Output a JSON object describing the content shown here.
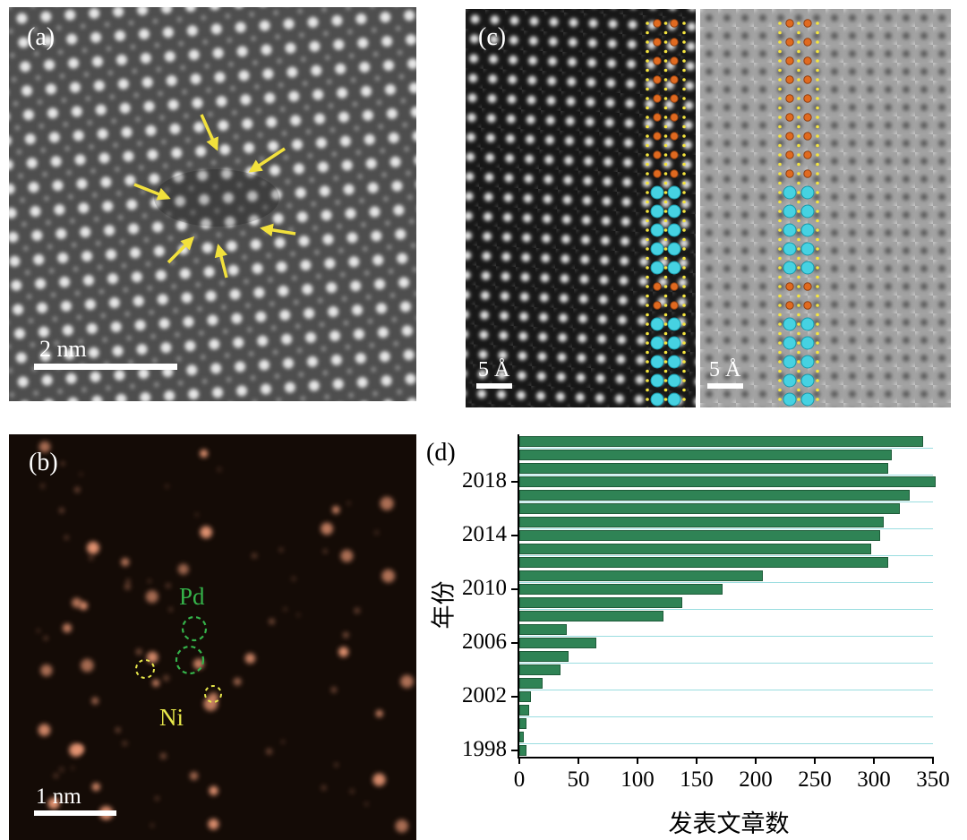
{
  "figure_labels": {
    "a": "(a)",
    "b": "(b)",
    "c": "(c)",
    "d": "(d)"
  },
  "panel_a": {
    "scale_bar_label": "2 nm",
    "annotation": "yellow arrows marking lattice defect sites"
  },
  "panel_b": {
    "pd_label": "Pd",
    "ni_label": "Ni",
    "scale_bar_label": "1 nm"
  },
  "panel_c": {
    "scale_bar_left": "5 Å",
    "scale_bar_right": "5 Å"
  },
  "colors": {
    "arrow_yellow": "#f2e13c",
    "pd_green": "#35b34a",
    "ni_yellow": "#e8e84a",
    "atom_dot_orange": "#f09b78",
    "overlay_cyan": "#46d2e2",
    "overlay_orange": "#e06a20",
    "overlay_yellow": "#f5e53e"
  },
  "chart_data": {
    "type": "bar",
    "orientation": "horizontal",
    "title": "",
    "xlabel": "发表文章数",
    "ylabel": "年份",
    "xlim": [
      0,
      350
    ],
    "x_ticks": [
      0,
      50,
      100,
      150,
      200,
      250,
      300,
      350
    ],
    "y_tick_years": [
      1998,
      2002,
      2006,
      2010,
      2014,
      2018
    ],
    "grid": true,
    "legend": false,
    "bar_color": "#2f8355",
    "bar_edge_color": "#1e5b39",
    "grid_color": "#9adde0",
    "categories": [
      1998,
      1999,
      2000,
      2001,
      2002,
      2003,
      2004,
      2005,
      2006,
      2007,
      2008,
      2009,
      2010,
      2011,
      2012,
      2013,
      2014,
      2015,
      2016,
      2017,
      2018,
      2019,
      2020,
      2021
    ],
    "values": [
      6,
      4,
      6,
      8,
      10,
      20,
      35,
      42,
      65,
      40,
      122,
      138,
      172,
      206,
      312,
      298,
      305,
      308,
      322,
      330,
      352,
      312,
      315,
      342
    ]
  }
}
